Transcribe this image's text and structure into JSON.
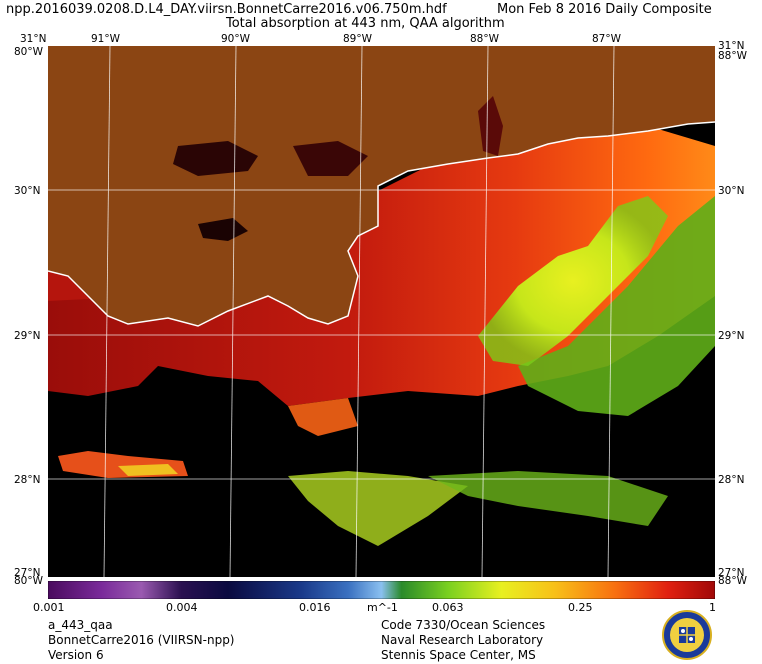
{
  "header": {
    "filename": "npp.2016039.0208.D.L4_DAY.viirsn.BonnetCarre2016.v06.750m.hdf",
    "date": "Mon Feb  8 2016 Daily Composite",
    "product": "Total absorption at 443 nm, QAA algorithm"
  },
  "map": {
    "lat_labels": [
      "31°N",
      "30°N",
      "29°N",
      "28°N",
      "27°N"
    ],
    "lon_labels": [
      "91°W",
      "90°W",
      "89°W",
      "88°W",
      "87°W"
    ],
    "corner_lon_left": "80°W",
    "corner_lon_right": "88°W",
    "land_color": "#8b4513",
    "nodata_color": "#000000"
  },
  "colorbar": {
    "ticks": [
      "0.001",
      "0.004",
      "0.016",
      "m^-1",
      "0.063",
      "0.25",
      "1"
    ],
    "scale": "log"
  },
  "footer": {
    "left_line1": "a_443_qaa",
    "left_line2": "BonnetCarre2016 (VIIRSN-npp)",
    "left_line3": "Version 6",
    "right_line1": "Code 7330/Ocean Sciences",
    "right_line2": "Naval Research Laboratory",
    "right_line3": "Stennis Space Center, MS"
  }
}
